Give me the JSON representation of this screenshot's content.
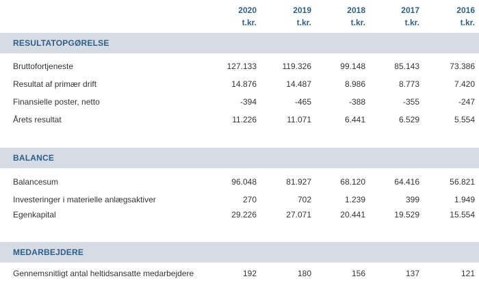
{
  "years": [
    {
      "year": "2020",
      "unit": "t.kr."
    },
    {
      "year": "2019",
      "unit": "t.kr."
    },
    {
      "year": "2018",
      "unit": "t.kr."
    },
    {
      "year": "2017",
      "unit": "t.kr."
    },
    {
      "year": "2016",
      "unit": "t.kr."
    }
  ],
  "sections": [
    {
      "title": "RESULTATOPGØRELSE",
      "rows": [
        {
          "label": "Bruttofortjeneste",
          "values": [
            "127.133",
            "119.326",
            "99.148",
            "85.143",
            "73.386"
          ]
        },
        {
          "label": "Resultat af primær drift",
          "values": [
            "14.876",
            "14.487",
            "8.986",
            "8.773",
            "7.420"
          ]
        },
        {
          "label": "Finansielle poster, netto",
          "values": [
            "-394",
            "-465",
            "-388",
            "-355",
            "-247"
          ]
        },
        {
          "label": "Årets resultat",
          "values": [
            "11.226",
            "11.071",
            "6.441",
            "6.529",
            "5.554"
          ]
        }
      ]
    },
    {
      "title": "BALANCE",
      "rows": [
        {
          "label": "Balancesum",
          "values": [
            "96.048",
            "81.927",
            "68.120",
            "64.416",
            "56.821"
          ]
        },
        {
          "label": "Investeringer i materielle anlægsaktiver",
          "values": [
            "270",
            "702",
            "1.239",
            "399",
            "1.949"
          ]
        },
        {
          "label": "Egenkapital",
          "values": [
            "29.226",
            "27.071",
            "20.441",
            "19.529",
            "15.554"
          ]
        }
      ]
    },
    {
      "title": "MEDARBEJDERE",
      "rows": [
        {
          "label": "Gennemsnitligt antal heltidsansatte medarbejdere",
          "values": [
            "192",
            "180",
            "156",
            "137",
            "121"
          ]
        }
      ]
    }
  ]
}
